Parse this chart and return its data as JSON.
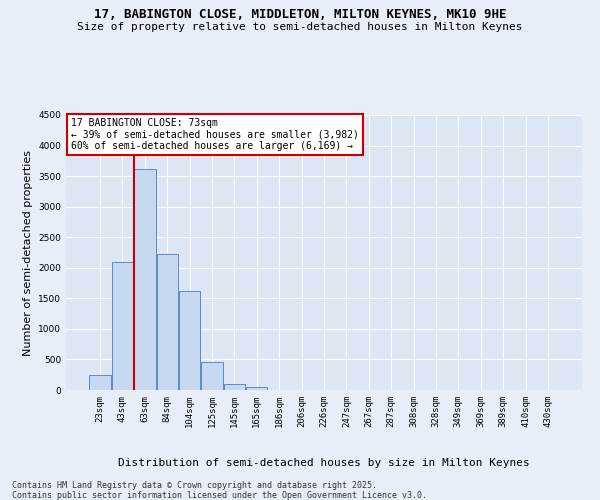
{
  "title_line1": "17, BABINGTON CLOSE, MIDDLETON, MILTON KEYNES, MK10 9HE",
  "title_line2": "Size of property relative to semi-detached houses in Milton Keynes",
  "xlabel": "Distribution of semi-detached houses by size in Milton Keynes",
  "ylabel": "Number of semi-detached properties",
  "annotation_title": "17 BABINGTON CLOSE: 73sqm",
  "annotation_line2": "← 39% of semi-detached houses are smaller (3,982)",
  "annotation_line3": "60% of semi-detached houses are larger (6,169) →",
  "footer_line1": "Contains HM Land Registry data © Crown copyright and database right 2025.",
  "footer_line2": "Contains public sector information licensed under the Open Government Licence v3.0.",
  "bar_labels": [
    "23sqm",
    "43sqm",
    "63sqm",
    "84sqm",
    "104sqm",
    "125sqm",
    "145sqm",
    "165sqm",
    "186sqm",
    "206sqm",
    "226sqm",
    "247sqm",
    "267sqm",
    "287sqm",
    "308sqm",
    "328sqm",
    "349sqm",
    "369sqm",
    "389sqm",
    "410sqm",
    "430sqm"
  ],
  "bar_values": [
    250,
    2100,
    3620,
    2220,
    1620,
    460,
    100,
    50,
    0,
    0,
    0,
    0,
    0,
    0,
    0,
    0,
    0,
    0,
    0,
    0,
    0
  ],
  "bar_color": "#c6d9f1",
  "bar_edge_color": "#5a8ac6",
  "ylim": [
    0,
    4500
  ],
  "yticks": [
    0,
    500,
    1000,
    1500,
    2000,
    2500,
    3000,
    3500,
    4000,
    4500
  ],
  "bg_color": "#e8eef7",
  "plot_bg_color": "#dce6f5",
  "grid_color": "#ffffff",
  "red_line_color": "#cc0000",
  "annotation_box_color": "#ffffff",
  "annotation_box_edge": "#cc0000",
  "title_fontsize": 9,
  "subtitle_fontsize": 8,
  "tick_fontsize": 6.5,
  "label_fontsize": 8,
  "footer_fontsize": 6,
  "annotation_fontsize": 7
}
